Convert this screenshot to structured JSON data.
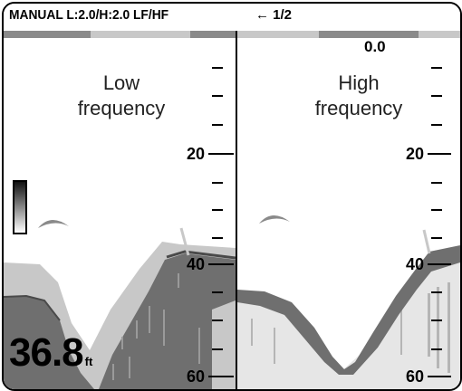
{
  "header": {
    "mode_text": "MANUAL L:2.0/H:2.0  LF/HF",
    "page_indicator": "← 1/2"
  },
  "panes": {
    "low": {
      "label_line1": "Low",
      "label_line2": "frequency"
    },
    "high": {
      "label_line1": "High",
      "label_line2": "frequency"
    }
  },
  "scale": {
    "zero_label": "0.0",
    "depth_labels": [
      "20",
      "40",
      "60"
    ]
  },
  "readout": {
    "depth_value": "36.8",
    "unit": "ft"
  },
  "colors": {
    "echo_dark": "#6f6f6f",
    "echo_light": "#c8c8c8",
    "strip_dark": "#8a8a8a",
    "outline": "#000000"
  },
  "icons": {
    "color_scale": "color-scale-bar-icon",
    "fish": "fish-echo-icon"
  }
}
